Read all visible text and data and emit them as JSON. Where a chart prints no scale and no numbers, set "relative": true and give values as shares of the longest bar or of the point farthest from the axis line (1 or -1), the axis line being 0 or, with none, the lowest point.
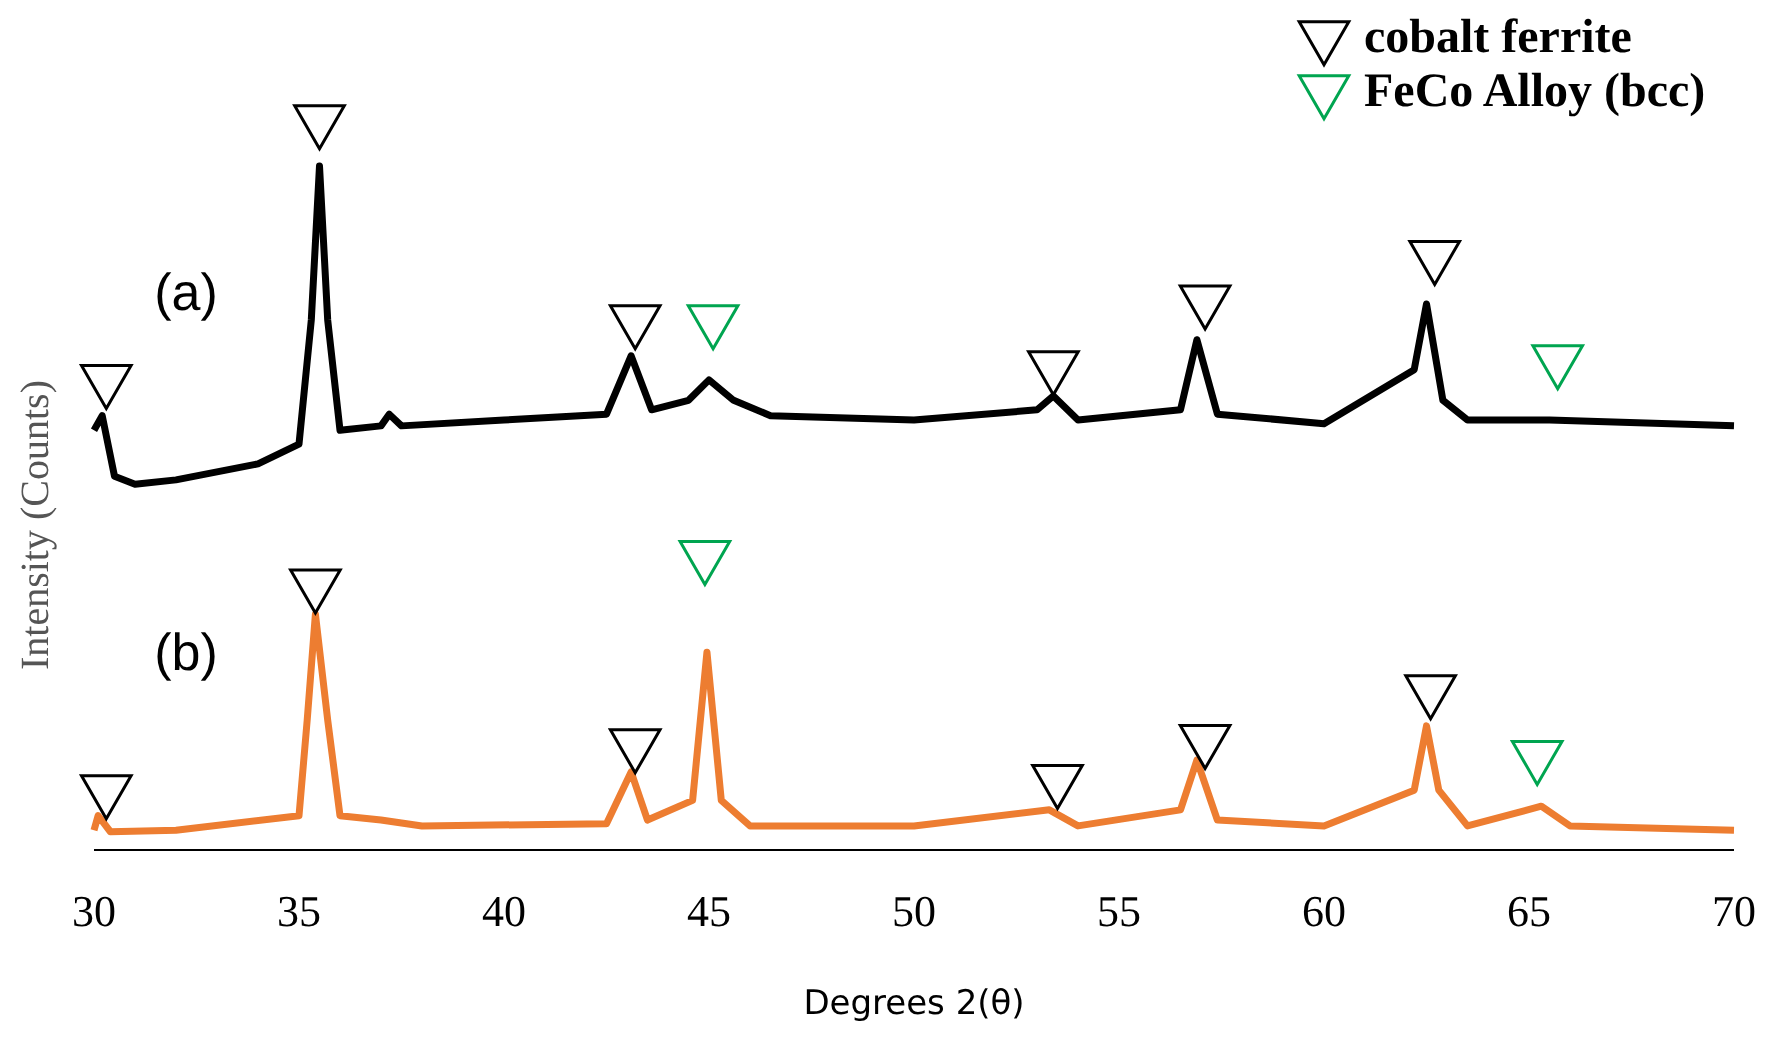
{
  "chart_data": {
    "type": "line",
    "relative": true,
    "xlabel": "Degrees 2(θ)",
    "ylabel": "Intensity (Counts)",
    "xlim": [
      30,
      70
    ],
    "xticks": [
      30,
      35,
      40,
      45,
      50,
      55,
      60,
      65,
      70
    ],
    "legend": "top right",
    "grid": false,
    "line_style": "solid",
    "annotations": [
      "(a)",
      "(b)"
    ],
    "series": [
      {
        "color": "#000000",
        "x": [
          30,
          30.2,
          30.5,
          31,
          32,
          34,
          35,
          35.3,
          35.5,
          35.7,
          36,
          37,
          37.2,
          37.5,
          40,
          42.5,
          43.1,
          43.6,
          44.5,
          45,
          45.6,
          46.5,
          50,
          53,
          53.4,
          54,
          56.5,
          56.9,
          57.4,
          60,
          62.2,
          62.5,
          62.9,
          63.5,
          65.5,
          70
        ],
        "values": [
          0.575,
          0.595,
          0.512,
          0.501,
          0.507,
          0.529,
          0.556,
          0.726,
          0.937,
          0.726,
          0.575,
          0.581,
          0.597,
          0.581,
          0.589,
          0.597,
          0.677,
          0.603,
          0.616,
          0.644,
          0.616,
          0.595,
          0.589,
          0.603,
          0.622,
          0.589,
          0.603,
          0.699,
          0.597,
          0.584,
          0.658,
          0.748,
          0.616,
          0.589,
          0.589,
          0.581
        ]
      },
      {
        "color": "#ed7d31",
        "x": [
          30,
          30.1,
          30.4,
          32,
          35,
          35.2,
          35.4,
          35.7,
          36,
          37,
          38,
          42.5,
          43.1,
          43.5,
          44.6,
          44.95,
          45.3,
          46,
          50,
          53.3,
          54,
          56.5,
          56.9,
          57.4,
          60,
          62.2,
          62.5,
          62.8,
          63.5,
          65.3,
          66,
          70
        ],
        "values": [
          0.027,
          0.047,
          0.025,
          0.027,
          0.047,
          0.178,
          0.323,
          0.178,
          0.047,
          0.041,
          0.033,
          0.036,
          0.107,
          0.041,
          0.068,
          0.271,
          0.068,
          0.033,
          0.033,
          0.055,
          0.033,
          0.055,
          0.123,
          0.041,
          0.033,
          0.082,
          0.17,
          0.082,
          0.033,
          0.06,
          0.033,
          0.027
        ]
      },
      {
        "type": "scatter",
        "name": "cobalt ferrite",
        "color": "#000000",
        "marker": "triangle",
        "x": [
          30.3,
          35.5,
          43.2,
          53.4,
          57.1,
          62.7,
          30.3,
          35.4,
          43.2,
          53.5,
          57.1,
          62.6
        ],
        "values": [
          0.644,
          1,
          0.726,
          0.663,
          0.753,
          0.814,
          0.082,
          0.364,
          0.145,
          0.096,
          0.151,
          0.219
        ]
      },
      {
        "type": "scatter",
        "name": "FeCo Alloy (bcc)",
        "color": "#00a550",
        "marker": "triangle",
        "x": [
          45.1,
          65.7,
          44.9,
          65.2
        ],
        "values": [
          0.726,
          0.671,
          0.403,
          0.129
        ]
      }
    ]
  }
}
